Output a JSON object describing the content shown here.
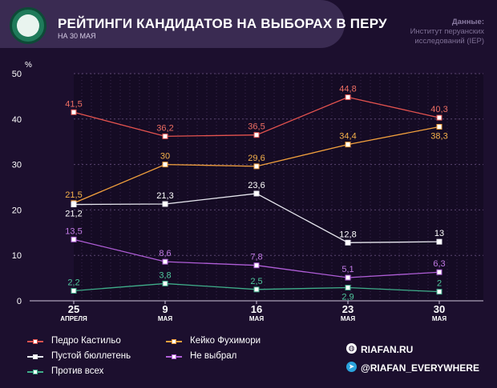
{
  "header": {
    "title": "РЕЙТИНГИ КАНДИДАТОВ НА ВЫБОРАХ В ПЕРУ",
    "subtitle": "НА 30 МАЯ",
    "source_label": "Данные:",
    "source_text": "Институт перуанских исследований (IEP)"
  },
  "chart_data": {
    "type": "line",
    "ylabel": "%",
    "ylim": [
      0,
      50
    ],
    "yticks": [
      0,
      10,
      20,
      30,
      40,
      50
    ],
    "categories": [
      {
        "day": "25",
        "month": "АПРЕЛЯ"
      },
      {
        "day": "9",
        "month": "МАЯ"
      },
      {
        "day": "16",
        "month": "МАЯ"
      },
      {
        "day": "23",
        "month": "МАЯ"
      },
      {
        "day": "30",
        "month": "МАЯ"
      }
    ],
    "series": [
      {
        "name": "Педро Кастильо",
        "color": "#e5534f",
        "label_color": "#ef6e63",
        "values": [
          41.5,
          36.2,
          36.5,
          44.8,
          40.3
        ],
        "labels": [
          "41,5",
          "36,2",
          "36,5",
          "44,8",
          "40,3"
        ],
        "label_pos": [
          "above",
          "above",
          "above",
          "above",
          "above"
        ]
      },
      {
        "name": "Кейко Фухимори",
        "color": "#f2a03d",
        "label_color": "#f5b04a",
        "values": [
          21.5,
          30,
          29.6,
          34.4,
          38.3
        ],
        "labels": [
          "21,5",
          "30",
          "29,6",
          "34,4",
          "38,3"
        ],
        "label_pos": [
          "above",
          "above",
          "above",
          "above",
          "below"
        ]
      },
      {
        "name": "Пустой бюллетень",
        "color": "#e8e8f0",
        "label_color": "#ffffff",
        "values": [
          21.2,
          21.3,
          23.6,
          12.8,
          13
        ],
        "labels": [
          "21,2",
          "21,3",
          "23,6",
          "12,8",
          "13"
        ],
        "label_pos": [
          "below",
          "above",
          "above",
          "above",
          "above"
        ]
      },
      {
        "name": "Не выбрал",
        "color": "#b05ed8",
        "label_color": "#c27be6",
        "values": [
          13.5,
          8.6,
          7.8,
          5.1,
          6.3
        ],
        "labels": [
          "13,5",
          "8,6",
          "7,8",
          "5,1",
          "6,3"
        ],
        "label_pos": [
          "above",
          "above",
          "above",
          "above",
          "above"
        ]
      },
      {
        "name": "Против всех",
        "color": "#3fae8a",
        "label_color": "#4fc79d",
        "values": [
          2.2,
          3.8,
          2.5,
          2.9,
          2
        ],
        "labels": [
          "2,2",
          "3,8",
          "2,5",
          "2,9",
          "2"
        ],
        "label_pos": [
          "above",
          "above",
          "above",
          "below",
          "above"
        ]
      }
    ]
  },
  "legend": {
    "items": [
      {
        "label": "Педро Кастильо",
        "color": "#e5534f"
      },
      {
        "label": "Кейко Фухимори",
        "color": "#f2a03d"
      },
      {
        "label": "Пустой бюллетень",
        "color": "#e8e8f0"
      },
      {
        "label": "Не выбрал",
        "color": "#b05ed8"
      },
      {
        "label": "Против всех",
        "color": "#3fae8a"
      }
    ]
  },
  "social": {
    "site": "RIAFAN.RU",
    "telegram": "@RIAFAN_EVERYWHERE",
    "site_icon": "globe-icon",
    "telegram_icon": "telegram-icon"
  }
}
